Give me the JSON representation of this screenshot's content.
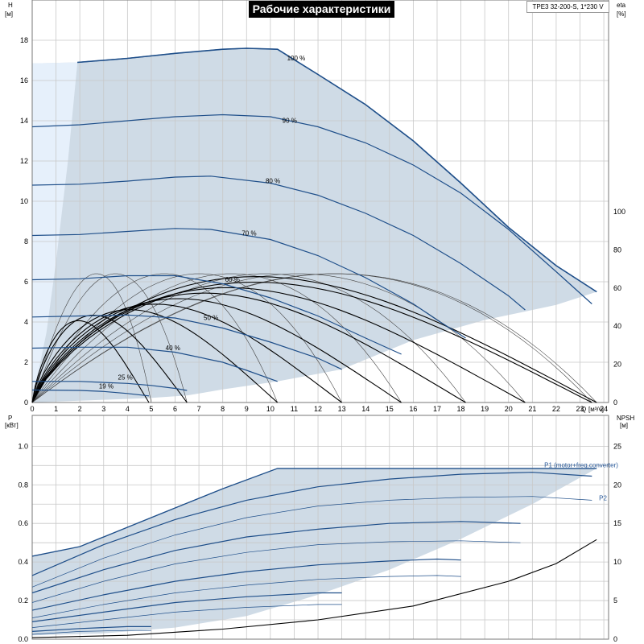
{
  "title": "Рабочие характеристики",
  "model": "TPE3 32-200-S, 1*230 V",
  "colors": {
    "envelope": "#cfdbe6",
    "lowflow": "#e6f0fb",
    "curve": "#1f4f8a",
    "eta": "#000000",
    "grid": "#c8c8c8"
  },
  "chart_data": [
    {
      "type": "line",
      "name": "head",
      "axes": {
        "x": {
          "symbol": "Q",
          "unit": "[м³/ч]",
          "ticks": [
            "0",
            "1",
            "2",
            "3",
            "4",
            "5",
            "6",
            "7",
            "8",
            "9",
            "10",
            "11",
            "12",
            "13",
            "14",
            "15",
            "16",
            "17",
            "18",
            "19",
            "20",
            "21",
            "22",
            "23",
            "24"
          ],
          "range": [
            0,
            24.2
          ]
        },
        "y_left": {
          "symbol": "H",
          "unit": "[м]",
          "ticks": [
            "0",
            "2",
            "4",
            "6",
            "8",
            "10",
            "12",
            "14",
            "16",
            "18"
          ],
          "range": [
            0,
            20
          ]
        },
        "y_right": {
          "symbol": "eta",
          "unit": "[%]",
          "ticks": [
            "0",
            "20",
            "40",
            "60",
            "80",
            "100"
          ],
          "range": [
            0,
            211
          ]
        }
      },
      "grid": true,
      "curve_labels": [
        "100 %",
        "90 %",
        "80 %",
        "70 %",
        "60 %",
        "50 %",
        "40 %",
        "25 %",
        "19 %"
      ],
      "speed_curves": [
        {
          "label": "100 %",
          "points": [
            [
              1.9,
              16.9
            ],
            [
              4,
              17.1
            ],
            [
              6,
              17.35
            ],
            [
              8,
              17.55
            ],
            [
              9,
              17.6
            ],
            [
              10.3,
              17.55
            ],
            [
              12,
              16.3
            ],
            [
              14,
              14.8
            ],
            [
              16,
              13.0
            ],
            [
              18,
              10.9
            ],
            [
              20,
              8.7
            ],
            [
              22,
              6.8
            ],
            [
              23.7,
              5.5
            ]
          ]
        },
        {
          "label": "90 %",
          "points": [
            [
              0,
              13.7
            ],
            [
              2,
              13.8
            ],
            [
              4,
              14.0
            ],
            [
              6,
              14.2
            ],
            [
              8,
              14.3
            ],
            [
              10,
              14.2
            ],
            [
              12,
              13.7
            ],
            [
              14,
              12.9
            ],
            [
              16,
              11.8
            ],
            [
              18,
              10.4
            ],
            [
              20,
              8.6
            ],
            [
              22,
              6.5
            ],
            [
              23.5,
              4.9
            ]
          ]
        },
        {
          "label": "80 %",
          "points": [
            [
              0,
              10.8
            ],
            [
              2,
              10.85
            ],
            [
              4,
              11.0
            ],
            [
              6,
              11.2
            ],
            [
              7.5,
              11.25
            ],
            [
              10,
              10.9
            ],
            [
              12,
              10.3
            ],
            [
              14,
              9.4
            ],
            [
              16,
              8.3
            ],
            [
              18,
              6.9
            ],
            [
              20,
              5.3
            ],
            [
              20.7,
              4.6
            ]
          ]
        },
        {
          "label": "70 %",
          "points": [
            [
              0,
              8.3
            ],
            [
              2,
              8.35
            ],
            [
              4,
              8.5
            ],
            [
              6,
              8.65
            ],
            [
              7.5,
              8.6
            ],
            [
              10,
              8.1
            ],
            [
              12,
              7.3
            ],
            [
              14,
              6.2
            ],
            [
              16,
              4.9
            ],
            [
              17,
              4.1
            ],
            [
              18.2,
              3.2
            ]
          ]
        },
        {
          "label": "60 %",
          "points": [
            [
              0,
              6.1
            ],
            [
              2,
              6.15
            ],
            [
              4,
              6.3
            ],
            [
              6,
              6.3
            ],
            [
              8,
              5.9
            ],
            [
              10,
              5.2
            ],
            [
              12,
              4.3
            ],
            [
              14,
              3.2
            ],
            [
              15.5,
              2.4
            ]
          ]
        },
        {
          "label": "50 %",
          "points": [
            [
              0,
              4.25
            ],
            [
              2,
              4.3
            ],
            [
              4,
              4.35
            ],
            [
              6,
              4.2
            ],
            [
              8,
              3.7
            ],
            [
              10,
              3.0
            ],
            [
              12,
              2.2
            ],
            [
              13,
              1.65
            ]
          ]
        },
        {
          "label": "40 %",
          "points": [
            [
              0,
              2.7
            ],
            [
              2,
              2.75
            ],
            [
              4,
              2.75
            ],
            [
              6,
              2.5
            ],
            [
              8,
              2.0
            ],
            [
              9,
              1.6
            ],
            [
              10.3,
              1.05
            ]
          ]
        },
        {
          "label": "25 %",
          "points": [
            [
              0,
              1.05
            ],
            [
              2,
              1.05
            ],
            [
              4,
              0.95
            ],
            [
              5,
              0.85
            ],
            [
              6,
              0.7
            ],
            [
              6.5,
              0.6
            ]
          ]
        },
        {
          "label": "19 %",
          "points": [
            [
              0,
              0.62
            ],
            [
              2,
              0.6
            ],
            [
              3,
              0.55
            ],
            [
              4,
              0.45
            ],
            [
              4.9,
              0.33
            ]
          ]
        }
      ],
      "envelope": [
        [
          0,
          16.85
        ],
        [
          1.9,
          16.9
        ],
        [
          4,
          17.1
        ],
        [
          6,
          17.35
        ],
        [
          8,
          17.55
        ],
        [
          9,
          17.6
        ],
        [
          10.3,
          17.55
        ],
        [
          12,
          16.3
        ],
        [
          14,
          14.8
        ],
        [
          16,
          13.0
        ],
        [
          18,
          10.9
        ],
        [
          20,
          8.7
        ],
        [
          22,
          6.8
        ],
        [
          23.7,
          5.5
        ],
        [
          22,
          4.85
        ],
        [
          19,
          4.1
        ],
        [
          16,
          3.1
        ],
        [
          13,
          1.65
        ],
        [
          10.3,
          1.05
        ],
        [
          8,
          0.65
        ],
        [
          6.5,
          0.35
        ],
        [
          4.9,
          0.22
        ],
        [
          0,
          0
        ]
      ],
      "lowflow_zone": [
        [
          0,
          0
        ],
        [
          0,
          16.85
        ],
        [
          1.9,
          16.9
        ],
        [
          1.5,
          12
        ],
        [
          1.0,
          7
        ],
        [
          0.6,
          3.5
        ],
        [
          0,
          0
        ]
      ]
    },
    {
      "type": "line",
      "name": "power",
      "axes": {
        "x": {
          "ticks": [
            "0",
            "1",
            "2",
            "3",
            "4",
            "5",
            "6",
            "7",
            "8",
            "9",
            "10",
            "11",
            "12",
            "13",
            "14",
            "15",
            "16",
            "17",
            "18",
            "19",
            "20",
            "21",
            "22",
            "23",
            "24"
          ],
          "range": [
            0,
            24.2
          ]
        },
        "y_left": {
          "symbol": "P",
          "unit": "[кВт]",
          "ticks": [
            "0.0",
            "0.2",
            "0.4",
            "0.6",
            "0.8",
            "1.0"
          ],
          "range": [
            0,
            1.16
          ]
        },
        "y_right": {
          "symbol": "NPSH",
          "unit": "[м]",
          "ticks": [
            "0",
            "5",
            "10",
            "15",
            "20",
            "25"
          ],
          "range": [
            0,
            29
          ]
        }
      },
      "grid": true,
      "series_labels": [
        "P1 (motor+freq.converter)",
        "P2"
      ],
      "p1_curves": [
        [
          [
            0,
            0.33
          ],
          [
            3,
            0.49
          ],
          [
            6,
            0.62
          ],
          [
            9,
            0.72
          ],
          [
            12,
            0.79
          ],
          [
            15,
            0.83
          ],
          [
            18,
            0.855
          ],
          [
            21,
            0.865
          ],
          [
            23.5,
            0.845
          ]
        ],
        [
          [
            0,
            0.24
          ],
          [
            3,
            0.36
          ],
          [
            6,
            0.46
          ],
          [
            9,
            0.53
          ],
          [
            12,
            0.57
          ],
          [
            15,
            0.6
          ],
          [
            18,
            0.61
          ],
          [
            20.5,
            0.6
          ]
        ],
        [
          [
            0,
            0.15
          ],
          [
            3,
            0.23
          ],
          [
            6,
            0.3
          ],
          [
            9,
            0.35
          ],
          [
            12,
            0.385
          ],
          [
            15,
            0.405
          ],
          [
            17,
            0.415
          ],
          [
            18,
            0.41
          ]
        ],
        [
          [
            0,
            0.09
          ],
          [
            3,
            0.14
          ],
          [
            6,
            0.19
          ],
          [
            9,
            0.22
          ],
          [
            12,
            0.24
          ],
          [
            13,
            0.24
          ]
        ],
        [
          [
            0,
            0.04
          ],
          [
            2,
            0.055
          ],
          [
            4,
            0.065
          ],
          [
            5,
            0.065
          ]
        ]
      ],
      "p2_curves": [
        [
          [
            0,
            0.27
          ],
          [
            3,
            0.42
          ],
          [
            6,
            0.54
          ],
          [
            9,
            0.63
          ],
          [
            12,
            0.69
          ],
          [
            15,
            0.72
          ],
          [
            18,
            0.735
          ],
          [
            21,
            0.74
          ],
          [
            23.5,
            0.72
          ]
        ],
        [
          [
            0,
            0.19
          ],
          [
            3,
            0.3
          ],
          [
            6,
            0.39
          ],
          [
            9,
            0.45
          ],
          [
            12,
            0.49
          ],
          [
            15,
            0.505
          ],
          [
            18,
            0.51
          ],
          [
            20.5,
            0.5
          ]
        ],
        [
          [
            0,
            0.11
          ],
          [
            3,
            0.18
          ],
          [
            6,
            0.24
          ],
          [
            9,
            0.28
          ],
          [
            12,
            0.31
          ],
          [
            15,
            0.325
          ],
          [
            17,
            0.33
          ],
          [
            18,
            0.325
          ]
        ],
        [
          [
            0,
            0.06
          ],
          [
            3,
            0.1
          ],
          [
            6,
            0.14
          ],
          [
            9,
            0.165
          ],
          [
            12,
            0.18
          ],
          [
            13,
            0.18
          ]
        ],
        [
          [
            0,
            0.025
          ],
          [
            2,
            0.04
          ],
          [
            4,
            0.045
          ],
          [
            5,
            0.045
          ]
        ]
      ],
      "p1_envelope": [
        [
          0,
          0.43
        ],
        [
          2,
          0.48
        ],
        [
          4,
          0.58
        ],
        [
          6,
          0.68
        ],
        [
          8,
          0.78
        ],
        [
          10.3,
          0.885
        ],
        [
          15,
          0.885
        ],
        [
          20,
          0.885
        ],
        [
          23.7,
          0.885
        ],
        [
          21,
          0.7
        ],
        [
          18,
          0.52
        ],
        [
          15,
          0.36
        ],
        [
          12,
          0.23
        ],
        [
          9,
          0.12
        ],
        [
          6,
          0.06
        ],
        [
          3,
          0.03
        ],
        [
          0,
          0.02
        ]
      ],
      "npsh_curve": [
        [
          0,
          0.2
        ],
        [
          4,
          0.5
        ],
        [
          8,
          1.3
        ],
        [
          12,
          2.5
        ],
        [
          16,
          4.3
        ],
        [
          20,
          7.5
        ],
        [
          22,
          9.8
        ],
        [
          23.7,
          12.9
        ]
      ]
    }
  ]
}
